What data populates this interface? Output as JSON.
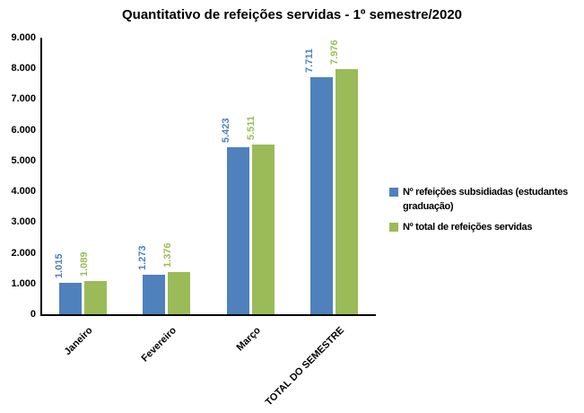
{
  "title": "Quantitativo de refeições servidas - 1º semestre/2020",
  "chart_data": {
    "type": "bar",
    "title": "Quantitativo de refeições servidas - 1º semestre/2020",
    "categories": [
      "Janeiro",
      "Fevereiro",
      "Março",
      "TOTAL DO SEMESTRE"
    ],
    "series": [
      {
        "name": "Nº refeições subsidiadas (estudantes graduação)",
        "color": "#4F81BD",
        "values": [
          1015,
          1273,
          5423,
          7711
        ],
        "value_labels": [
          "1.015",
          "1.273",
          "5.423",
          "7.711"
        ]
      },
      {
        "name": "Nº total de refeições servidas",
        "color": "#9BBB59",
        "values": [
          1089,
          1376,
          5511,
          7976
        ],
        "value_labels": [
          "1.089",
          "1.376",
          "5.511",
          "7.976"
        ]
      }
    ],
    "xlabel": "",
    "ylabel": "",
    "ylim": [
      0,
      9000
    ],
    "ytick_interval": 1000,
    "ytick_labels": [
      "0",
      "1.000",
      "2.000",
      "3.000",
      "4.000",
      "5.000",
      "6.000",
      "7.000",
      "8.000",
      "9.000"
    ],
    "grid": false,
    "legend_position": "right"
  }
}
